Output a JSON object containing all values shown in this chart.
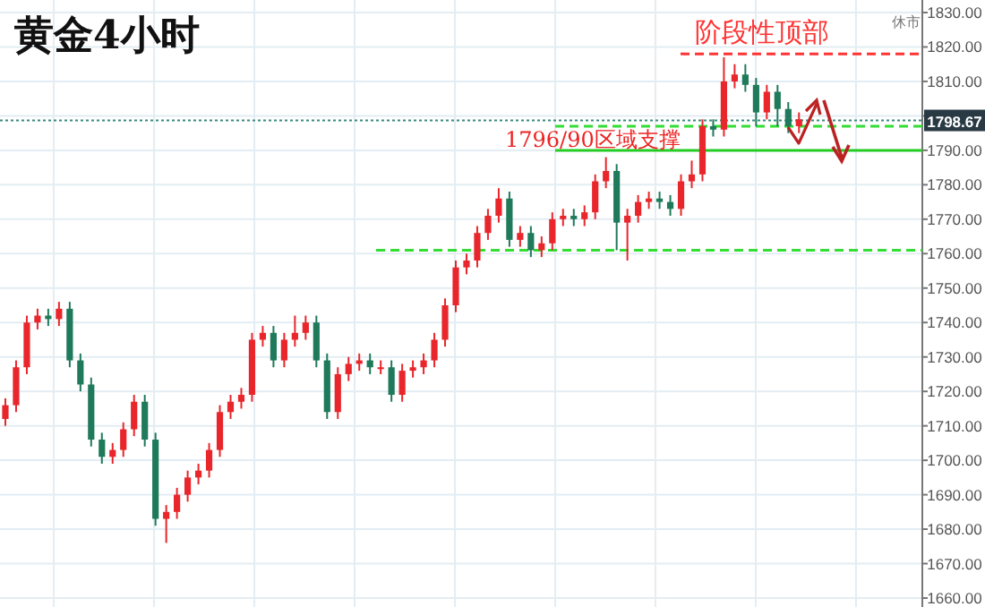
{
  "chart_data": {
    "type": "candlestick",
    "title": "黄金4小时",
    "categories": [
      null,
      null,
      null,
      null,
      null,
      null,
      null,
      null,
      null,
      null,
      null,
      null,
      null,
      null,
      null,
      null,
      null,
      null,
      null,
      null,
      null,
      null,
      null,
      null,
      null,
      null,
      null,
      null,
      null,
      null,
      null,
      null,
      null,
      null,
      null,
      null,
      null,
      null,
      null,
      null,
      null,
      null,
      null,
      null,
      null,
      null,
      null,
      null,
      null,
      null,
      null,
      null,
      null,
      null,
      null,
      null,
      null,
      null,
      null,
      null,
      null,
      null,
      null,
      null,
      null,
      null,
      null,
      null,
      null,
      null,
      null,
      null,
      null,
      null,
      null,
      null,
      null,
      null,
      null,
      null,
      null,
      null,
      null,
      null,
      null,
      null
    ],
    "ohlc": [
      [
        1712,
        1718,
        1710,
        1716
      ],
      [
        1716,
        1729,
        1714,
        1727
      ],
      [
        1727,
        1742,
        1725,
        1740
      ],
      [
        1740,
        1744,
        1738,
        1742
      ],
      [
        1742,
        1744,
        1739,
        1741
      ],
      [
        1741,
        1746,
        1739,
        1744
      ],
      [
        1744,
        1746,
        1727,
        1729
      ],
      [
        1729,
        1731,
        1720,
        1722
      ],
      [
        1722,
        1724,
        1704,
        1706
      ],
      [
        1706,
        1708,
        1699,
        1701
      ],
      [
        1701,
        1705,
        1699,
        1703
      ],
      [
        1703,
        1711,
        1701,
        1709
      ],
      [
        1709,
        1719,
        1707,
        1717
      ],
      [
        1717,
        1719,
        1704,
        1706
      ],
      [
        1706,
        1708,
        1681,
        1683
      ],
      [
        1683,
        1687,
        1676,
        1685
      ],
      [
        1685,
        1692,
        1683,
        1690
      ],
      [
        1690,
        1697,
        1688,
        1695
      ],
      [
        1695,
        1699,
        1693,
        1697
      ],
      [
        1697,
        1705,
        1695,
        1703
      ],
      [
        1703,
        1716,
        1701,
        1714
      ],
      [
        1714,
        1719,
        1712,
        1717
      ],
      [
        1717,
        1721,
        1715,
        1719
      ],
      [
        1719,
        1737,
        1717,
        1735
      ],
      [
        1735,
        1739,
        1733,
        1737
      ],
      [
        1737,
        1739,
        1727,
        1729
      ],
      [
        1729,
        1737,
        1727,
        1735
      ],
      [
        1735,
        1742,
        1733,
        1737
      ],
      [
        1737,
        1742,
        1735,
        1740
      ],
      [
        1740,
        1742,
        1727,
        1729
      ],
      [
        1729,
        1731,
        1712,
        1714
      ],
      [
        1714,
        1727,
        1712,
        1725
      ],
      [
        1725,
        1730,
        1723,
        1728
      ],
      [
        1728,
        1731,
        1726,
        1729
      ],
      [
        1729,
        1731,
        1725,
        1727
      ],
      [
        1727,
        1729,
        1725,
        1727
      ],
      [
        1727,
        1729,
        1717,
        1719
      ],
      [
        1719,
        1728,
        1717,
        1726
      ],
      [
        1726,
        1729,
        1724,
        1727
      ],
      [
        1727,
        1731,
        1725,
        1729
      ],
      [
        1729,
        1737,
        1727,
        1735
      ],
      [
        1735,
        1747,
        1733,
        1745
      ],
      [
        1745,
        1758,
        1743,
        1756
      ],
      [
        1756,
        1760,
        1754,
        1758
      ],
      [
        1758,
        1768,
        1756,
        1766
      ],
      [
        1766,
        1773,
        1764,
        1771
      ],
      [
        1771,
        1779,
        1769,
        1776
      ],
      [
        1776,
        1778,
        1762,
        1764
      ],
      [
        1764,
        1768,
        1762,
        1766
      ],
      [
        1766,
        1768,
        1759,
        1761
      ],
      [
        1761,
        1765,
        1759,
        1763
      ],
      [
        1763,
        1772,
        1761,
        1770
      ],
      [
        1770,
        1773,
        1768,
        1771
      ],
      [
        1771,
        1773,
        1768,
        1770
      ],
      [
        1770,
        1774,
        1768,
        1772
      ],
      [
        1772,
        1783,
        1770,
        1781
      ],
      [
        1781,
        1788,
        1779,
        1784
      ],
      [
        1784,
        1786,
        1761,
        1769
      ],
      [
        1769,
        1773,
        1758,
        1771
      ],
      [
        1771,
        1777,
        1769,
        1775
      ],
      [
        1775,
        1778,
        1773,
        1776
      ],
      [
        1776,
        1778,
        1773,
        1775
      ],
      [
        1775,
        1777,
        1771,
        1773
      ],
      [
        1773,
        1783,
        1771,
        1781
      ],
      [
        1781,
        1787,
        1779,
        1783
      ],
      [
        1783,
        1799,
        1781,
        1797
      ],
      [
        1797,
        1799,
        1794,
        1796
      ],
      [
        1796,
        1817,
        1794,
        1810
      ],
      [
        1810,
        1815,
        1808,
        1812
      ],
      [
        1812,
        1815,
        1807,
        1809
      ],
      [
        1809,
        1811,
        1797,
        1801
      ],
      [
        1801,
        1809,
        1799,
        1807
      ],
      [
        1807,
        1809,
        1797,
        1802
      ],
      [
        1802,
        1804,
        1795,
        1797
      ],
      [
        1797,
        1801,
        1795,
        1799
      ],
      null,
      null,
      null,
      null,
      null,
      null,
      null,
      null,
      null,
      null,
      null
    ],
    "ylim": [
      1660,
      1830
    ],
    "yticks": [
      {
        "value": 1660,
        "label": "1660.00"
      },
      {
        "value": 1670,
        "label": "1670.00"
      },
      {
        "value": 1680,
        "label": "1680.00"
      },
      {
        "value": 1690,
        "label": "1690.00"
      },
      {
        "value": 1700,
        "label": "1700.00"
      },
      {
        "value": 1710,
        "label": "1710.00"
      },
      {
        "value": 1720,
        "label": "1720.00"
      },
      {
        "value": 1730,
        "label": "1730.00"
      },
      {
        "value": 1740,
        "label": "1740.00"
      },
      {
        "value": 1750,
        "label": "1750.00"
      },
      {
        "value": 1760,
        "label": "1760.00"
      },
      {
        "value": 1770,
        "label": "1770.00"
      },
      {
        "value": 1780,
        "label": "1780.00"
      },
      {
        "value": 1790,
        "label": "1790.00"
      },
      {
        "value": 1800,
        "label": null
      },
      {
        "value": 1810,
        "label": "1810.00"
      },
      {
        "value": 1820,
        "label": "1820.00"
      },
      {
        "value": 1830,
        "label": "1830.00"
      }
    ],
    "grid": true,
    "ref_lines": [
      {
        "axis": "y",
        "value": 1818,
        "color": "#ff3333",
        "line_style": "dashed"
      },
      {
        "axis": "y",
        "value": 1798.67,
        "label": "1798.67",
        "color": "#3a8a80",
        "line_style": "dotted"
      },
      {
        "axis": "y",
        "value": 1797,
        "color": "#33dd33",
        "line_style": "dashed"
      },
      {
        "axis": "y",
        "value": 1790,
        "color": "#22cc22",
        "line_style": "solid"
      },
      {
        "axis": "y",
        "value": 1761,
        "color": "#33dd33",
        "line_style": "dashed"
      }
    ],
    "annotations": [
      "阶段性顶部",
      "1796/90区域支撑",
      "休市"
    ]
  }
}
